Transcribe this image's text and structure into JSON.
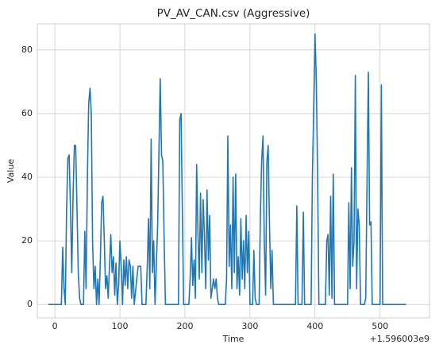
{
  "chart_data": {
    "type": "line",
    "title": "PV_AV_CAN.csv (Aggressive)",
    "x_label": "Time",
    "y_label": "Value",
    "x_offset_label": "+1.596003e9",
    "grid": true,
    "xlim": [
      -27,
      576
    ],
    "ylim": [
      -4.2,
      88.2
    ],
    "xticks": [
      0,
      100,
      200,
      300,
      400,
      500
    ],
    "yticks": [
      0,
      20,
      40,
      60,
      80
    ],
    "x": [
      -10,
      10,
      12,
      14,
      16,
      18,
      20,
      22,
      24,
      26,
      28,
      30,
      32,
      34,
      36,
      38,
      40,
      44,
      46,
      48,
      50,
      52,
      54,
      56,
      58,
      60,
      62,
      64,
      66,
      68,
      70,
      72,
      74,
      76,
      78,
      80,
      82,
      84,
      86,
      88,
      90,
      92,
      94,
      96,
      98,
      100,
      102,
      104,
      106,
      108,
      110,
      112,
      114,
      116,
      118,
      120,
      122,
      126,
      128,
      132,
      134,
      140,
      142,
      144,
      146,
      148,
      150,
      152,
      154,
      158,
      160,
      162,
      164,
      166,
      168,
      170,
      190,
      192,
      194,
      196,
      198,
      206,
      208,
      210,
      212,
      214,
      216,
      218,
      220,
      222,
      224,
      226,
      228,
      230,
      232,
      234,
      236,
      238,
      240,
      244,
      246,
      248,
      250,
      252,
      262,
      264,
      266,
      268,
      270,
      272,
      274,
      276,
      278,
      280,
      282,
      284,
      286,
      288,
      290,
      292,
      294,
      296,
      298,
      300,
      304,
      306,
      308,
      310,
      314,
      316,
      318,
      320,
      322,
      324,
      326,
      328,
      330,
      332,
      334,
      336,
      370,
      372,
      374,
      380,
      382,
      384,
      394,
      396,
      398,
      400,
      402,
      404,
      406,
      416,
      418,
      420,
      422,
      424,
      426,
      428,
      430,
      450,
      452,
      454,
      456,
      458,
      460,
      462,
      464,
      466,
      468,
      470,
      476,
      478,
      480,
      482,
      484,
      486,
      488,
      500,
      502,
      504,
      540
    ],
    "series": [
      {
        "name": "Value",
        "color": "#1f77b4",
        "values": [
          0,
          0,
          18,
          5,
          0,
          30,
          46,
          47,
          30,
          10,
          35,
          50,
          50,
          30,
          10,
          2,
          0,
          0,
          23,
          5,
          40,
          63,
          68,
          60,
          20,
          5,
          12,
          0,
          8,
          0,
          15,
          32,
          34,
          20,
          5,
          9,
          2,
          12,
          22,
          10,
          15,
          3,
          13,
          0,
          6,
          20,
          12,
          0,
          14,
          6,
          15,
          5,
          14,
          12,
          2,
          12,
          0,
          8,
          12,
          12,
          0,
          0,
          12,
          27,
          5,
          52,
          10,
          20,
          0,
          25,
          48,
          71,
          47,
          45,
          20,
          0,
          0,
          58,
          60,
          30,
          0,
          0,
          8,
          21,
          6,
          14,
          2,
          44,
          22,
          8,
          35,
          10,
          33,
          22,
          5,
          36,
          14,
          28,
          2,
          8,
          5,
          8,
          2,
          0,
          0,
          8,
          53,
          12,
          25,
          5,
          40,
          10,
          41,
          5,
          15,
          3,
          27,
          8,
          20,
          5,
          28,
          10,
          23,
          0,
          0,
          17,
          2,
          0,
          0,
          28,
          45,
          53,
          20,
          3,
          45,
          50,
          25,
          5,
          17,
          0,
          0,
          31,
          0,
          0,
          29,
          0,
          0,
          40,
          62,
          85,
          70,
          40,
          0,
          0,
          20,
          22,
          3,
          34,
          2,
          41,
          0,
          0,
          32,
          5,
          43,
          12,
          20,
          72,
          5,
          30,
          25,
          0,
          0,
          2,
          40,
          73,
          25,
          26,
          0,
          0,
          69,
          0,
          0
        ]
      }
    ]
  }
}
